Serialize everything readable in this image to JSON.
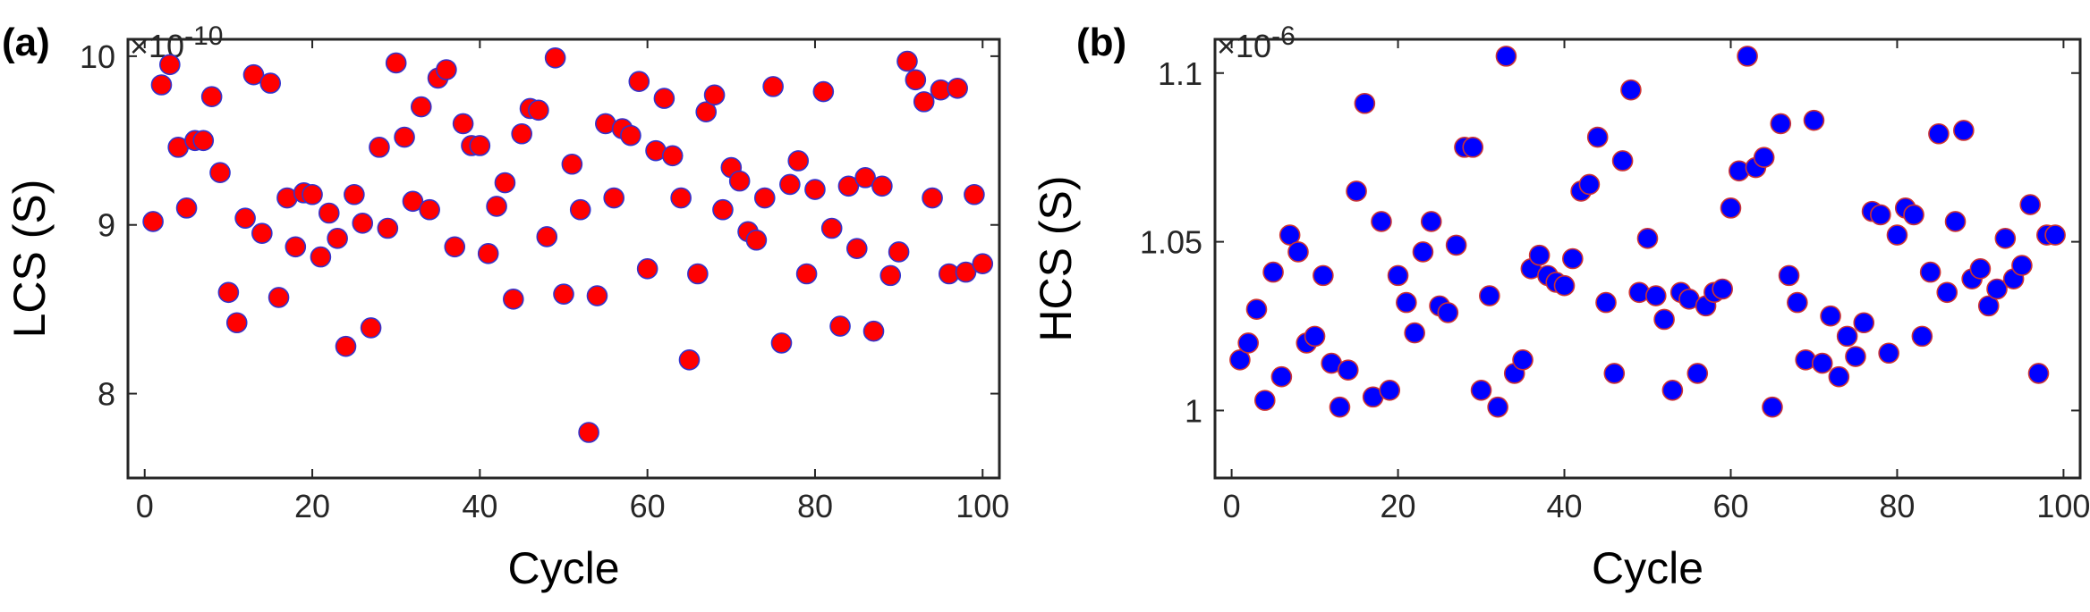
{
  "chart_data": [
    {
      "type": "scatter",
      "panel_label": "(a)",
      "title": "",
      "xlabel": "Cycle",
      "ylabel": "LCS (S)",
      "exponent_label": "×10",
      "exponent_power": "-10",
      "xlim": [
        -2,
        102
      ],
      "ylim": [
        7.5,
        10.1
      ],
      "xticks": [
        0,
        20,
        40,
        60,
        80,
        100
      ],
      "yticks": [
        8,
        9,
        10
      ],
      "ytick_labels": [
        "8",
        "9",
        "10"
      ],
      "marker_fill": "#ff0000",
      "marker_edge": "#3333cc",
      "series": [
        {
          "name": "LCS",
          "x": [
            1,
            2,
            3,
            4,
            5,
            6,
            7,
            8,
            9,
            10,
            11,
            12,
            13,
            14,
            15,
            16,
            17,
            18,
            19,
            20,
            21,
            22,
            23,
            24,
            25,
            26,
            27,
            28,
            29,
            30,
            31,
            32,
            33,
            34,
            35,
            36,
            37,
            38,
            39,
            40,
            41,
            42,
            43,
            44,
            45,
            46,
            47,
            48,
            49,
            50,
            51,
            52,
            53,
            54,
            55,
            56,
            57,
            58,
            59,
            60,
            61,
            62,
            63,
            64,
            65,
            66,
            67,
            68,
            69,
            70,
            71,
            72,
            73,
            74,
            75,
            76,
            77,
            78,
            79,
            80,
            81,
            82,
            83,
            84,
            85,
            86,
            87,
            88,
            89,
            90,
            91,
            92,
            93,
            94,
            95,
            96,
            97,
            98,
            99,
            100
          ],
          "y": [
            9.02,
            9.83,
            9.95,
            9.46,
            9.1,
            9.5,
            9.5,
            9.76,
            9.31,
            8.6,
            8.42,
            9.04,
            9.89,
            8.95,
            9.84,
            8.57,
            9.16,
            8.87,
            9.19,
            9.18,
            8.81,
            9.07,
            8.92,
            8.28,
            9.18,
            9.01,
            8.39,
            9.46,
            8.98,
            9.96,
            9.52,
            9.14,
            9.7,
            9.09,
            9.87,
            9.92,
            8.87,
            9.6,
            9.47,
            9.47,
            8.83,
            9.11,
            9.25,
            8.56,
            9.54,
            9.69,
            9.68,
            8.93,
            9.99,
            8.59,
            9.36,
            9.09,
            7.77,
            8.58,
            9.6,
            9.16,
            9.57,
            9.53,
            9.85,
            8.74,
            9.44,
            9.75,
            9.41,
            9.16,
            8.2,
            8.71,
            9.67,
            9.77,
            9.09,
            9.34,
            9.26,
            8.96,
            8.91,
            9.16,
            9.82,
            8.3,
            9.24,
            9.38,
            8.71,
            9.21,
            9.79,
            8.98,
            8.4,
            9.23,
            8.86,
            9.28,
            8.37,
            9.23,
            8.7,
            8.84,
            9.97,
            9.86,
            9.73,
            9.16,
            9.8,
            8.71,
            9.81,
            8.72,
            9.18,
            8.77
          ]
        }
      ]
    },
    {
      "type": "scatter",
      "panel_label": "(b)",
      "title": "",
      "xlabel": "Cycle",
      "ylabel": "HCS (S)",
      "exponent_label": "×10",
      "exponent_power": "-6",
      "xlim": [
        -2,
        102
      ],
      "ylim": [
        0.98,
        1.11
      ],
      "xticks": [
        0,
        20,
        40,
        60,
        80,
        100
      ],
      "yticks": [
        1.0,
        1.05,
        1.1
      ],
      "ytick_labels": [
        "1",
        "1.05",
        "1.1"
      ],
      "marker_fill": "#0000ff",
      "marker_edge": "#cc3333",
      "series": [
        {
          "name": "HCS",
          "x": [
            1,
            2,
            3,
            4,
            5,
            6,
            7,
            8,
            9,
            10,
            11,
            12,
            13,
            14,
            15,
            16,
            17,
            18,
            19,
            20,
            21,
            22,
            23,
            24,
            25,
            26,
            27,
            28,
            29,
            30,
            31,
            32,
            33,
            34,
            35,
            36,
            37,
            38,
            39,
            40,
            41,
            42,
            43,
            44,
            45,
            46,
            47,
            48,
            49,
            50,
            51,
            52,
            53,
            54,
            55,
            56,
            57,
            58,
            59,
            60,
            61,
            62,
            63,
            64,
            65,
            66,
            67,
            68,
            69,
            70,
            71,
            72,
            73,
            74,
            75,
            76,
            77,
            78,
            79,
            80,
            81,
            82,
            83,
            84,
            85,
            86,
            87,
            88,
            89,
            90,
            91,
            92,
            93,
            94,
            95,
            96,
            97,
            98,
            99
          ],
          "y": [
            1.015,
            1.02,
            1.03,
            1.003,
            1.041,
            1.01,
            1.052,
            1.047,
            1.02,
            1.022,
            1.04,
            1.014,
            1.001,
            1.012,
            1.065,
            1.091,
            1.004,
            1.056,
            1.006,
            1.04,
            1.032,
            1.023,
            1.047,
            1.056,
            1.031,
            1.029,
            1.049,
            1.078,
            1.078,
            1.006,
            1.034,
            1.001,
            1.105,
            1.011,
            1.015,
            1.042,
            1.046,
            1.04,
            1.038,
            1.037,
            1.045,
            1.065,
            1.067,
            1.081,
            1.032,
            1.011,
            1.074,
            1.095,
            1.035,
            1.051,
            1.034,
            1.027,
            1.006,
            1.035,
            1.033,
            1.011,
            1.031,
            1.035,
            1.036,
            1.06,
            1.071,
            1.105,
            1.072,
            1.075,
            1.001,
            1.085,
            1.04,
            1.032,
            1.015,
            1.086,
            1.014,
            1.028,
            1.01,
            1.022,
            1.016,
            1.026,
            1.059,
            1.058,
            1.017,
            1.052,
            1.06,
            1.058,
            1.022,
            1.041,
            1.082,
            1.035,
            1.056,
            1.083,
            1.039,
            1.042,
            1.031,
            1.036,
            1.051,
            1.039,
            1.043,
            1.061,
            1.011,
            1.052,
            1.052
          ]
        }
      ]
    }
  ]
}
